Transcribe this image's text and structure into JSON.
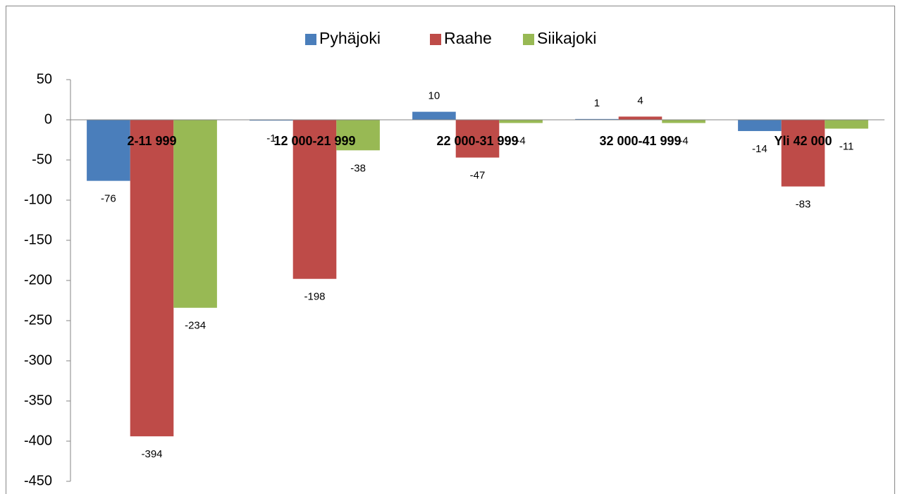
{
  "chart_data": {
    "type": "bar",
    "categories": [
      "2-11 999",
      "12 000-21 999",
      "22 000-31 999",
      "32 000-41 999",
      "Yli 42 000"
    ],
    "series": [
      {
        "name": "Pyhäjoki",
        "color": "#4a7ebb",
        "values": [
          -76,
          -1,
          10,
          1,
          -14
        ]
      },
      {
        "name": "Raahe",
        "color": "#be4b48",
        "values": [
          -394,
          -198,
          -47,
          4,
          -83
        ]
      },
      {
        "name": "Siikajoki",
        "color": "#98b954",
        "values": [
          -234,
          -38,
          -4,
          -4,
          -11
        ]
      }
    ],
    "ylim": [
      -450,
      50
    ],
    "yticks": [
      -450,
      -400,
      -350,
      -300,
      -250,
      -200,
      -150,
      -100,
      -50,
      0,
      50
    ],
    "legend": "top"
  }
}
